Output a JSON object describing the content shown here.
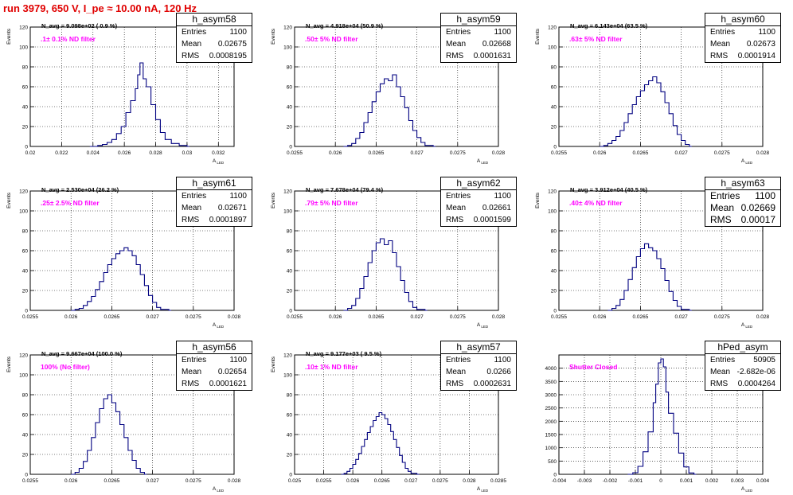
{
  "header": {
    "title": "run 3979,   650 V, I_pe ≈ 10.00 nA, 120 Hz"
  },
  "colors": {
    "histogram": "#000080",
    "title": "#e00000",
    "annotation": "#ff00ff",
    "grid": "#000000"
  },
  "chart_data": [
    {
      "type": "histogram",
      "name": "h_asym58",
      "navg": "N_avg = 9.098e+02 ( 0.9 %)",
      "annotation": ".1± 0.1% ND filter",
      "ylabel": "Events",
      "xlabel": "A_LED",
      "stats": {
        "Entries": "1100",
        "Mean": "0.02675",
        "RMS": "0.0008195"
      },
      "xlim": [
        0.02,
        0.033
      ],
      "xticks": [
        0.02,
        0.022,
        0.024,
        0.026,
        0.028,
        0.03,
        0.032
      ],
      "xticklabels": [
        "0.02",
        "0.022",
        "0.024",
        "0.026",
        "0.028",
        "0.03",
        "0.032"
      ],
      "ylim": [
        0,
        120
      ],
      "yticks": [
        0,
        20,
        40,
        60,
        80,
        100,
        120
      ],
      "bins": [
        [
          0.0238,
          0
        ],
        [
          0.0243,
          1
        ],
        [
          0.0246,
          2
        ],
        [
          0.0249,
          4
        ],
        [
          0.0252,
          7
        ],
        [
          0.0255,
          13
        ],
        [
          0.0258,
          20
        ],
        [
          0.0261,
          34
        ],
        [
          0.0264,
          46
        ],
        [
          0.0267,
          58
        ],
        [
          0.02685,
          72
        ],
        [
          0.027,
          84
        ],
        [
          0.0272,
          68
        ],
        [
          0.0274,
          60
        ],
        [
          0.0277,
          42
        ],
        [
          0.028,
          27
        ],
        [
          0.0283,
          14
        ],
        [
          0.0286,
          7
        ],
        [
          0.029,
          3
        ],
        [
          0.0295,
          1
        ],
        [
          0.03,
          0
        ]
      ]
    },
    {
      "type": "histogram",
      "name": "h_asym59",
      "navg": "N_avg = 4.918e+04 (50.9 %)",
      "annotation": ".50± 5% ND filter",
      "ylabel": "Events",
      "xlabel": "A_LED",
      "stats": {
        "Entries": "1100",
        "Mean": "0.02668",
        "RMS": "0.0001631"
      },
      "xlim": [
        0.0255,
        0.028
      ],
      "xticks": [
        0.0255,
        0.026,
        0.0265,
        0.027,
        0.0275,
        0.028
      ],
      "xticklabels": [
        "0.0255",
        "0.026",
        "0.0265",
        "0.027",
        "0.0275",
        "0.028"
      ],
      "ylim": [
        0,
        120
      ],
      "yticks": [
        0,
        20,
        40,
        60,
        80,
        100,
        120
      ],
      "bins": [
        [
          0.0261,
          0
        ],
        [
          0.02615,
          1
        ],
        [
          0.0262,
          3
        ],
        [
          0.02625,
          8
        ],
        [
          0.0263,
          14
        ],
        [
          0.02635,
          24
        ],
        [
          0.0264,
          34
        ],
        [
          0.02645,
          45
        ],
        [
          0.0265,
          55
        ],
        [
          0.02655,
          63
        ],
        [
          0.0266,
          68
        ],
        [
          0.02665,
          66
        ],
        [
          0.0267,
          72
        ],
        [
          0.02675,
          60
        ],
        [
          0.0268,
          50
        ],
        [
          0.02685,
          39
        ],
        [
          0.0269,
          26
        ],
        [
          0.02695,
          16
        ],
        [
          0.027,
          9
        ],
        [
          0.02705,
          4
        ],
        [
          0.0271,
          1
        ],
        [
          0.0272,
          0
        ]
      ]
    },
    {
      "type": "histogram",
      "name": "h_asym60",
      "navg": "N_avg = 6.143e+04 (63.5 %)",
      "annotation": ".63± 5% ND filter",
      "ylabel": "Events",
      "xlabel": "A_LED",
      "stats": {
        "Entries": "1100",
        "Mean": "0.02673",
        "RMS": "0.0001914"
      },
      "xlim": [
        0.0255,
        0.028
      ],
      "xticks": [
        0.0255,
        0.026,
        0.0265,
        0.027,
        0.0275,
        0.028
      ],
      "xticklabels": [
        "0.0255",
        "0.026",
        "0.0265",
        "0.027",
        "0.0275",
        "0.028"
      ],
      "ylim": [
        0,
        120
      ],
      "yticks": [
        0,
        20,
        40,
        60,
        80,
        100,
        120
      ],
      "bins": [
        [
          0.026,
          0
        ],
        [
          0.02605,
          1
        ],
        [
          0.0261,
          3
        ],
        [
          0.02615,
          6
        ],
        [
          0.0262,
          10
        ],
        [
          0.02625,
          16
        ],
        [
          0.0263,
          24
        ],
        [
          0.02635,
          33
        ],
        [
          0.0264,
          42
        ],
        [
          0.02645,
          50
        ],
        [
          0.0265,
          56
        ],
        [
          0.02655,
          62
        ],
        [
          0.0266,
          66
        ],
        [
          0.02665,
          70
        ],
        [
          0.0267,
          64
        ],
        [
          0.02675,
          55
        ],
        [
          0.0268,
          44
        ],
        [
          0.02685,
          33
        ],
        [
          0.0269,
          21
        ],
        [
          0.02695,
          12
        ],
        [
          0.027,
          6
        ],
        [
          0.02705,
          2
        ],
        [
          0.0271,
          0
        ]
      ]
    },
    {
      "type": "histogram",
      "name": "h_asym61",
      "navg": "N_avg = 2.530e+04 (26.2 %)",
      "annotation": ".25± 2.5% ND filter",
      "ylabel": "Events",
      "xlabel": "A_LED",
      "stats": {
        "Entries": "1100",
        "Mean": "0.02671",
        "RMS": "0.0001897"
      },
      "xlim": [
        0.0255,
        0.028
      ],
      "xticks": [
        0.0255,
        0.026,
        0.0265,
        0.027,
        0.0275,
        0.028
      ],
      "xticklabels": [
        "0.0255",
        "0.026",
        "0.0265",
        "0.027",
        "0.0275",
        "0.028"
      ],
      "ylim": [
        0,
        120
      ],
      "yticks": [
        0,
        20,
        40,
        60,
        80,
        100,
        120
      ],
      "bins": [
        [
          0.026,
          0
        ],
        [
          0.02605,
          1
        ],
        [
          0.0261,
          2
        ],
        [
          0.02615,
          5
        ],
        [
          0.0262,
          9
        ],
        [
          0.02625,
          14
        ],
        [
          0.0263,
          21
        ],
        [
          0.02635,
          29
        ],
        [
          0.0264,
          38
        ],
        [
          0.02645,
          46
        ],
        [
          0.0265,
          52
        ],
        [
          0.02655,
          57
        ],
        [
          0.0266,
          60
        ],
        [
          0.02665,
          63
        ],
        [
          0.0267,
          60
        ],
        [
          0.02675,
          55
        ],
        [
          0.0268,
          46
        ],
        [
          0.02685,
          36
        ],
        [
          0.0269,
          25
        ],
        [
          0.02695,
          15
        ],
        [
          0.027,
          8
        ],
        [
          0.02705,
          3
        ],
        [
          0.0271,
          1
        ],
        [
          0.0272,
          0
        ]
      ]
    },
    {
      "type": "histogram",
      "name": "h_asym62",
      "navg": "N_avg = 7.678e+04 (79.4 %)",
      "annotation": ".79± 5% ND filter",
      "ylabel": "Events",
      "xlabel": "A_LED",
      "stats": {
        "Entries": "1100",
        "Mean": "0.02661",
        "RMS": "0.0001599"
      },
      "xlim": [
        0.0255,
        0.028
      ],
      "xticks": [
        0.0255,
        0.026,
        0.0265,
        0.027,
        0.0275,
        0.028
      ],
      "xticklabels": [
        "0.0255",
        "0.026",
        "0.0265",
        "0.027",
        "0.0275",
        "0.028"
      ],
      "ylim": [
        0,
        120
      ],
      "yticks": [
        0,
        20,
        40,
        60,
        80,
        100,
        120
      ],
      "bins": [
        [
          0.0261,
          0
        ],
        [
          0.02615,
          2
        ],
        [
          0.0262,
          5
        ],
        [
          0.02625,
          12
        ],
        [
          0.0263,
          22
        ],
        [
          0.02635,
          34
        ],
        [
          0.0264,
          48
        ],
        [
          0.02645,
          60
        ],
        [
          0.0265,
          68
        ],
        [
          0.02655,
          72
        ],
        [
          0.0266,
          66
        ],
        [
          0.02665,
          70
        ],
        [
          0.0267,
          58
        ],
        [
          0.02675,
          44
        ],
        [
          0.0268,
          30
        ],
        [
          0.02685,
          18
        ],
        [
          0.0269,
          9
        ],
        [
          0.02695,
          3
        ],
        [
          0.027,
          1
        ],
        [
          0.0271,
          0
        ]
      ]
    },
    {
      "type": "histogram",
      "name": "h_asym63",
      "navg": "N_avg = 3.912e+04 (40.5 %)",
      "annotation": ".40± 4% ND filter",
      "ylabel": "Events",
      "xlabel": "A_LED",
      "stats": {
        "Entries": "1100",
        "Mean": "0.02669",
        "RMS": "0.00017"
      },
      "xlim": [
        0.0255,
        0.028
      ],
      "xticks": [
        0.0255,
        0.026,
        0.0265,
        0.027,
        0.0275,
        0.028
      ],
      "xticklabels": [
        "0.0255",
        "0.026",
        "0.0265",
        "0.027",
        "0.0275",
        "0.028"
      ],
      "ylim": [
        0,
        120
      ],
      "yticks": [
        0,
        20,
        40,
        60,
        80,
        100,
        120
      ],
      "bins": [
        [
          0.0261,
          0
        ],
        [
          0.02615,
          2
        ],
        [
          0.0262,
          5
        ],
        [
          0.02625,
          11
        ],
        [
          0.0263,
          20
        ],
        [
          0.02635,
          31
        ],
        [
          0.0264,
          43
        ],
        [
          0.02645,
          54
        ],
        [
          0.0265,
          62
        ],
        [
          0.02655,
          67
        ],
        [
          0.0266,
          63
        ],
        [
          0.02665,
          60
        ],
        [
          0.0267,
          52
        ],
        [
          0.02675,
          42
        ],
        [
          0.0268,
          30
        ],
        [
          0.02685,
          19
        ],
        [
          0.0269,
          10
        ],
        [
          0.02695,
          4
        ],
        [
          0.027,
          1
        ],
        [
          0.0271,
          0
        ]
      ]
    },
    {
      "type": "histogram",
      "name": "h_asym56",
      "navg": "N_avg = 9.667e+04 (100.0 %)",
      "annotation": "100% (No filter)",
      "ylabel": "Events",
      "xlabel": "A_LED",
      "stats": {
        "Entries": "1100",
        "Mean": "0.02654",
        "RMS": "0.0001621"
      },
      "xlim": [
        0.0255,
        0.028
      ],
      "xticks": [
        0.0255,
        0.026,
        0.0265,
        0.027,
        0.0275,
        0.028
      ],
      "xticklabels": [
        "0.0255",
        "0.026",
        "0.0265",
        "0.027",
        "0.0275",
        "0.028"
      ],
      "ylim": [
        0,
        120
      ],
      "yticks": [
        0,
        20,
        40,
        60,
        80,
        100,
        120
      ],
      "bins": [
        [
          0.026,
          0
        ],
        [
          0.02605,
          2
        ],
        [
          0.0261,
          6
        ],
        [
          0.02615,
          13
        ],
        [
          0.0262,
          24
        ],
        [
          0.02625,
          37
        ],
        [
          0.0263,
          52
        ],
        [
          0.02635,
          66
        ],
        [
          0.0264,
          76
        ],
        [
          0.02645,
          80
        ],
        [
          0.0265,
          72
        ],
        [
          0.02655,
          63
        ],
        [
          0.0266,
          50
        ],
        [
          0.02665,
          37
        ],
        [
          0.0267,
          24
        ],
        [
          0.02675,
          14
        ],
        [
          0.0268,
          6
        ],
        [
          0.02685,
          2
        ],
        [
          0.0269,
          0
        ]
      ]
    },
    {
      "type": "histogram",
      "name": "h_asym57",
      "navg": "N_avg = 9.177e+03 ( 9.5 %)",
      "annotation": ".10± 1% ND filter",
      "ylabel": "Events",
      "xlabel": "A_LED",
      "stats": {
        "Entries": "1100",
        "Mean": "0.0266",
        "RMS": "0.0002631"
      },
      "xlim": [
        0.025,
        0.0285
      ],
      "xticks": [
        0.025,
        0.0255,
        0.026,
        0.0265,
        0.027,
        0.0275,
        0.028,
        0.0285
      ],
      "xticklabels": [
        "0.025",
        "0.0255",
        "0.026",
        "0.0265",
        "0.027",
        "0.0275",
        "0.028",
        "0.0285"
      ],
      "ylim": [
        0,
        120
      ],
      "yticks": [
        0,
        20,
        40,
        60,
        80,
        100,
        120
      ],
      "bins": [
        [
          0.0258,
          0
        ],
        [
          0.02585,
          1
        ],
        [
          0.0259,
          3
        ],
        [
          0.02595,
          6
        ],
        [
          0.026,
          10
        ],
        [
          0.02605,
          15
        ],
        [
          0.0261,
          21
        ],
        [
          0.02615,
          28
        ],
        [
          0.0262,
          35
        ],
        [
          0.02625,
          42
        ],
        [
          0.0263,
          48
        ],
        [
          0.02635,
          54
        ],
        [
          0.0264,
          58
        ],
        [
          0.02645,
          62
        ],
        [
          0.0265,
          60
        ],
        [
          0.02655,
          56
        ],
        [
          0.0266,
          50
        ],
        [
          0.02665,
          43
        ],
        [
          0.0267,
          35
        ],
        [
          0.02675,
          27
        ],
        [
          0.0268,
          19
        ],
        [
          0.02685,
          12
        ],
        [
          0.0269,
          6
        ],
        [
          0.02695,
          3
        ],
        [
          0.027,
          1
        ],
        [
          0.0271,
          0
        ]
      ]
    },
    {
      "type": "histogram",
      "name": "hPed_asym",
      "navg": "",
      "annotation": "Shutter Closed",
      "ylabel": "",
      "xlabel": "A_LED",
      "stats": {
        "Entries": "50905",
        "Mean": "-2.682e-06",
        "RMS": "0.0004264"
      },
      "xlim": [
        -0.004,
        0.004
      ],
      "xticks": [
        -0.004,
        -0.003,
        -0.002,
        -0.001,
        0,
        0.001,
        0.002,
        0.003,
        0.004
      ],
      "xticklabels": [
        "-0.004",
        "-0.003",
        "-0.002",
        "-0.001",
        "0",
        "0.001",
        "0.002",
        "0.003",
        "0.004"
      ],
      "ylim": [
        0,
        4500
      ],
      "yticks": [
        0,
        500,
        1000,
        1500,
        2000,
        2500,
        3000,
        3500,
        4000
      ],
      "bins": [
        [
          -0.0013,
          0
        ],
        [
          -0.0011,
          60
        ],
        [
          -0.0009,
          300
        ],
        [
          -0.0007,
          850
        ],
        [
          -0.0005,
          1600
        ],
        [
          -0.0003,
          2700
        ],
        [
          -0.0002,
          3400
        ],
        [
          -0.0001,
          4200
        ],
        [
          0,
          4350
        ],
        [
          0.0001,
          4050
        ],
        [
          0.0002,
          3100
        ],
        [
          0.0003,
          2300
        ],
        [
          0.0005,
          1550
        ],
        [
          0.0007,
          800
        ],
        [
          0.0009,
          280
        ],
        [
          0.0011,
          50
        ],
        [
          0.0013,
          0
        ]
      ]
    }
  ]
}
